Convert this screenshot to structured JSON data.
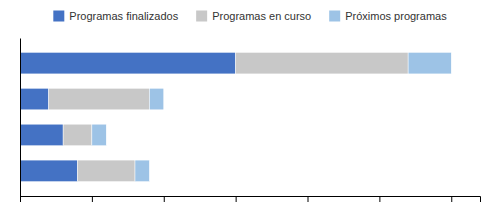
{
  "chart_data": {
    "type": "bar",
    "orientation": "horizontal",
    "stacked": true,
    "categories": [
      null,
      null,
      null,
      null
    ],
    "series": [
      {
        "name": "Programas finalizados",
        "values": [
          15,
          2,
          3,
          4
        ],
        "color": "#4472C4"
      },
      {
        "name": "Programas en curso",
        "values": [
          12,
          7,
          2,
          4
        ],
        "color": "#C8C8C8"
      },
      {
        "name": "Próximos programas",
        "values": [
          3,
          1,
          1,
          1
        ],
        "color": "#9DC3E6"
      }
    ],
    "xlim": [
      0,
      32
    ],
    "xticks": [
      0,
      5,
      10,
      15,
      20,
      25,
      30
    ],
    "grid": false,
    "legend": "top",
    "tick_labels": false
  }
}
